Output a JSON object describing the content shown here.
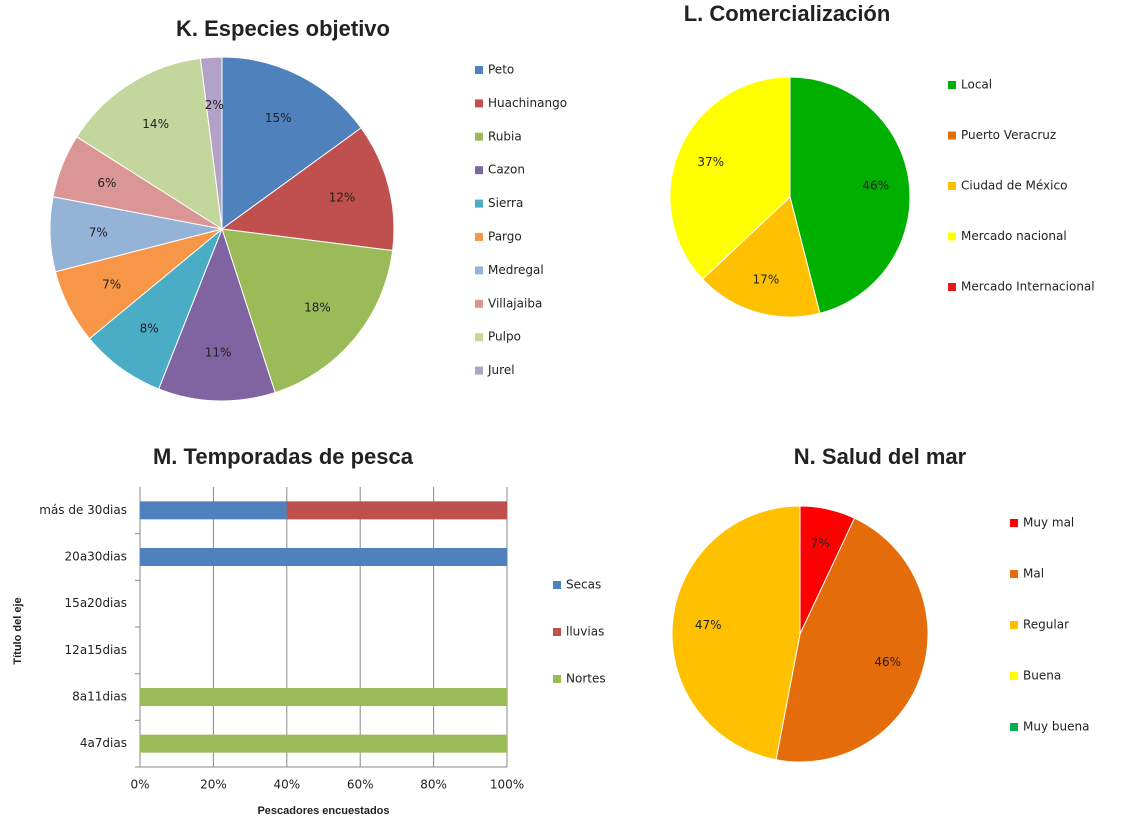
{
  "chart_data": [
    {
      "type": "pie",
      "title": "K. Especies objetivo",
      "categories": [
        "Peto",
        "Huachinango",
        "Rubia",
        "Cazon",
        "Sierra",
        "Pargo",
        "Medregal",
        "Villajaiba",
        "Pulpo",
        "Jurel"
      ],
      "values": [
        15,
        12,
        18,
        11,
        8,
        7,
        7,
        6,
        14,
        2
      ],
      "value_labels": [
        "15%",
        "12%",
        "18%",
        "11%",
        "8%",
        "7%",
        "7%",
        "6%",
        "14%",
        "2%"
      ],
      "colors": [
        "#4f81bd",
        "#c0504d",
        "#9bbb59",
        "#8064a2",
        "#4bacc6",
        "#f79646",
        "#95b3d7",
        "#d99694",
        "#c3d69b",
        "#b3a2c7"
      ],
      "legend": "right"
    },
    {
      "type": "pie",
      "title": "L. Comercialización",
      "categories": [
        "Local",
        "Puerto Veracruz",
        "Ciudad de México",
        "Mercado nacional",
        "Mercado Internacional"
      ],
      "values": [
        46,
        0,
        17,
        37,
        0
      ],
      "value_labels": [
        "46%",
        null,
        "17%",
        "37%",
        null
      ],
      "colors": [
        "#00b000",
        "#e46c0a",
        "#ffc000",
        "#ffff00",
        "#e31a1c"
      ],
      "legend": "right"
    },
    {
      "type": "hbar",
      "title": "M. Temporadas de pesca",
      "categories": [
        "4a7dias",
        "8a11dias",
        "12a15dias",
        "15a20dias",
        "20a30dias",
        "más de 30dias"
      ],
      "series": [
        {
          "name": "Secas",
          "color": "#4f81bd",
          "values": [
            0,
            0,
            0,
            0,
            100,
            40
          ]
        },
        {
          "name": "lluvias",
          "color": "#c0504d",
          "values": [
            0,
            0,
            0,
            0,
            0,
            60
          ]
        },
        {
          "name": "Nortes",
          "color": "#9bbb59",
          "values": [
            100,
            100,
            0,
            0,
            0,
            0
          ]
        }
      ],
      "xlim": [
        0,
        100
      ],
      "xticks": [
        {
          "value": 0,
          "label": "0%"
        },
        {
          "value": 20,
          "label": "20%"
        },
        {
          "value": 40,
          "label": "40%"
        },
        {
          "value": 60,
          "label": "60%"
        },
        {
          "value": 80,
          "label": "80%"
        },
        {
          "value": 100,
          "label": "100%"
        }
      ],
      "x_label": "Pescadores encuestados",
      "y_label": "Título del eje",
      "grid": true,
      "stacked": true,
      "legend": "right"
    },
    {
      "type": "pie",
      "title": "N. Salud del mar",
      "categories": [
        "Muy mal",
        "Mal",
        "Regular",
        "Buena",
        "Muy buena"
      ],
      "values": [
        7,
        46,
        47,
        0,
        0
      ],
      "value_labels": [
        "7%",
        "46%",
        "47%",
        null,
        null
      ],
      "colors": [
        "#ff0000",
        "#e46c0a",
        "#ffc000",
        "#ffff00",
        "#00b050"
      ],
      "legend": "right"
    }
  ]
}
